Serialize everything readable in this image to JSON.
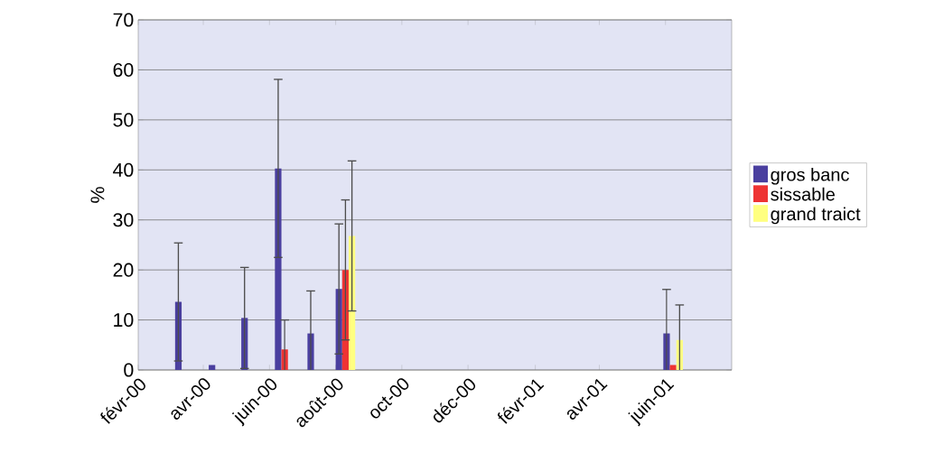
{
  "chart_data": {
    "type": "bar",
    "ylabel": "%",
    "x": [
      "2000-03-15",
      "2000-04-15",
      "2000-05-15",
      "2000-06-15",
      "2000-07-15",
      "2000-08-10",
      "2001-06-08"
    ],
    "series": [
      {
        "name": "gros banc",
        "color": "#4a3f9f",
        "values": [
          13.6,
          1,
          10.4,
          40.3,
          7.3,
          16.2,
          7.3
        ],
        "errors": [
          11.8,
          null,
          10.1,
          17.8,
          8.5,
          13,
          8.8
        ]
      },
      {
        "name": "sissable",
        "color": "#ee3333",
        "values": [
          null,
          null,
          null,
          4.1,
          null,
          20,
          1
        ],
        "errors": [
          null,
          null,
          null,
          5.9,
          null,
          14,
          null
        ]
      },
      {
        "name": "grand traict",
        "color": "#ffff80",
        "values": [
          null,
          null,
          null,
          null,
          null,
          26.8,
          6
        ],
        "errors": [
          null,
          null,
          null,
          null,
          null,
          15,
          7
        ]
      }
    ],
    "xlim": [
      "2000-02",
      "2001-08"
    ],
    "xticks": [
      {
        "value": "2000-02",
        "label": "févr-00"
      },
      {
        "value": "2000-04",
        "label": "avr-00"
      },
      {
        "value": "2000-06",
        "label": "juin-00"
      },
      {
        "value": "2000-08",
        "label": "août-00"
      },
      {
        "value": "2000-10",
        "label": "oct-00"
      },
      {
        "value": "2000-12",
        "label": "déc-00"
      },
      {
        "value": "2001-02",
        "label": "févr-01"
      },
      {
        "value": "2001-04",
        "label": "avr-01"
      },
      {
        "value": "2001-06",
        "label": "juin-01"
      }
    ],
    "ylim": [
      0,
      70
    ],
    "yticks": [
      0,
      10,
      20,
      30,
      40,
      50,
      60,
      70
    ],
    "grid": "y",
    "legend": "right"
  }
}
